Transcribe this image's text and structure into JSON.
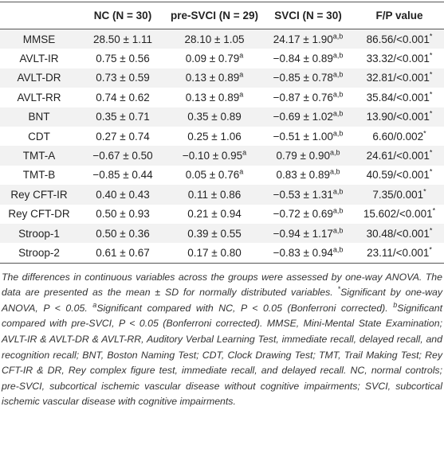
{
  "table": {
    "header": [
      "",
      "NC (N = 30)",
      "pre-SVCI (N = 29)",
      "SVCI (N = 30)",
      "F/P value"
    ],
    "rows": [
      [
        "MMSE",
        "28.50 ± 1.11",
        "28.10 ± 1.05",
        {
          "text": "24.17 ± 1.90",
          "sup": "a,b"
        },
        {
          "text": "86.56/<0.001",
          "sup": "*"
        }
      ],
      [
        "AVLT-IR",
        "0.75 ± 0.56",
        {
          "text": "0.09 ± 0.79",
          "sup": "a"
        },
        {
          "text": "−0.84 ± 0.89",
          "sup": "a,b"
        },
        {
          "text": "33.32/<0.001",
          "sup": "*"
        }
      ],
      [
        "AVLT-DR",
        "0.73 ± 0.59",
        {
          "text": "0.13 ± 0.89",
          "sup": "a"
        },
        {
          "text": "−0.85 ± 0.78",
          "sup": "a,b"
        },
        {
          "text": "32.81/<0.001",
          "sup": "*"
        }
      ],
      [
        "AVLT-RR",
        "0.74 ± 0.62",
        {
          "text": "0.13 ± 0.89",
          "sup": "a"
        },
        {
          "text": "−0.87 ± 0.76",
          "sup": "a,b"
        },
        {
          "text": "35.84/<0.001",
          "sup": "*"
        }
      ],
      [
        "BNT",
        "0.35 ± 0.71",
        "0.35 ± 0.89",
        {
          "text": "−0.69 ± 1.02",
          "sup": "a,b"
        },
        {
          "text": "13.90/<0.001",
          "sup": "*"
        }
      ],
      [
        "CDT",
        "0.27 ± 0.74",
        "0.25 ± 1.06",
        {
          "text": "−0.51 ± 1.00",
          "sup": "a,b"
        },
        {
          "text": "6.60/0.002",
          "sup": "*"
        }
      ],
      [
        "TMT-A",
        "−0.67 ± 0.50",
        {
          "text": "−0.10 ± 0.95",
          "sup": "a"
        },
        {
          "text": "0.79 ± 0.90",
          "sup": "a,b"
        },
        {
          "text": "24.61/<0.001",
          "sup": "*"
        }
      ],
      [
        "TMT-B",
        "−0.85 ± 0.44",
        {
          "text": "0.05 ± 0.76",
          "sup": "a"
        },
        {
          "text": "0.83 ± 0.89",
          "sup": "a,b"
        },
        {
          "text": "40.59/<0.001",
          "sup": "*"
        }
      ],
      [
        "Rey CFT-IR",
        "0.40 ± 0.43",
        "0.11 ± 0.86",
        {
          "text": "−0.53 ± 1.31",
          "sup": "a,b"
        },
        {
          "text": "7.35/0.001",
          "sup": "*"
        }
      ],
      [
        "Rey CFT-DR",
        "0.50 ± 0.93",
        "0.21 ± 0.94",
        {
          "text": "−0.72 ± 0.69",
          "sup": "a,b"
        },
        {
          "text": "15.602/<0.001",
          "sup": "*"
        }
      ],
      [
        "Stroop-1",
        "0.50 ± 0.36",
        "0.39 ± 0.55",
        {
          "text": "−0.94 ± 1.17",
          "sup": "a,b"
        },
        {
          "text": "30.48/<0.001",
          "sup": "*"
        }
      ],
      [
        "Stroop-2",
        "0.61 ± 0.67",
        "0.17 ± 0.80",
        {
          "text": "−0.83 ± 0.94",
          "sup": "a,b"
        },
        {
          "text": "23.11/<0.001",
          "sup": "*"
        }
      ]
    ]
  },
  "footnote": [
    "The differences in continuous variables across the groups were assessed by one-way ANOVA. The data are presented as the mean ± SD for normally distributed variables. ",
    {
      "sup": "*"
    },
    "Significant by one-way ANOVA, P < 0.05. ",
    {
      "sup": "a"
    },
    "Significant compared with NC, P < 0.05 (Bonferroni corrected). ",
    {
      "sup": "b"
    },
    "Significant compared with pre-SVCI, P < 0.05 (Bonferroni corrected). MMSE, Mini-Mental State Examination; AVLT-IR & AVLT-DR & AVLT-RR, Auditory Verbal Learning Test, immediate recall, delayed recall, and recognition recall; BNT, Boston Naming Test; CDT, Clock Drawing Test; TMT, Trail Making Test; Rey CFT-IR & DR, Rey complex figure test, immediate recall, and delayed recall. NC, normal controls; pre-SVCI, subcortical ischemic vascular disease without cognitive impairments; SVCI, subcortical ischemic vascular disease with cognitive impairments."
  ]
}
